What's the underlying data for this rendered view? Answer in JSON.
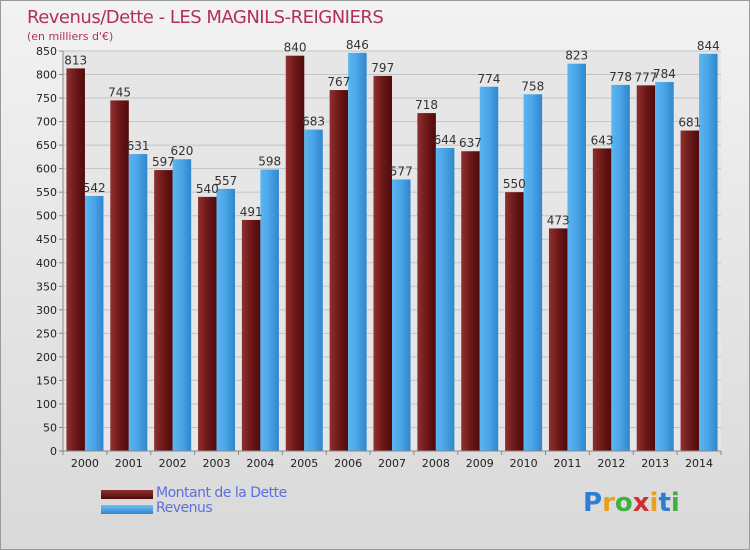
{
  "title": "Revenus/Dette - LES MAGNILS-REIGNIERS",
  "subtitle": "(en milliers d'€)",
  "colors": {
    "dette": "#7a1d1d",
    "revenus": "#4aa3e6",
    "title": "#b0305a",
    "legend_text": "#5a6fe0"
  },
  "chart_data": {
    "type": "bar",
    "categories": [
      "2000",
      "2001",
      "2002",
      "2003",
      "2004",
      "2005",
      "2006",
      "2007",
      "2008",
      "2009",
      "2010",
      "2011",
      "2012",
      "2013",
      "2014"
    ],
    "series": [
      {
        "name": "Montant de la Dette",
        "values": [
          813,
          745,
          597,
          540,
          491,
          840,
          767,
          797,
          718,
          637,
          550,
          473,
          643,
          777,
          681
        ]
      },
      {
        "name": "Revenus",
        "values": [
          542,
          631,
          620,
          557,
          598,
          683,
          846,
          577,
          644,
          774,
          758,
          823,
          778,
          784,
          844
        ]
      }
    ],
    "ylim": [
      0,
      850
    ],
    "yticks": [
      0,
      50,
      100,
      150,
      200,
      250,
      300,
      350,
      400,
      450,
      500,
      550,
      600,
      650,
      700,
      750,
      800,
      850
    ],
    "grid": true,
    "legend_position": "bottom-left"
  },
  "legend": {
    "dette_label": "Montant de la Dette",
    "revenus_label": "Revenus"
  },
  "logo": {
    "letters": [
      "P",
      "r",
      "o",
      "x",
      "i",
      "t",
      "i"
    ],
    "colors": [
      "#2a7fd4",
      "#e8a020",
      "#40b040",
      "#d03030",
      "#e8a020",
      "#2a7fd4",
      "#40b040"
    ]
  }
}
